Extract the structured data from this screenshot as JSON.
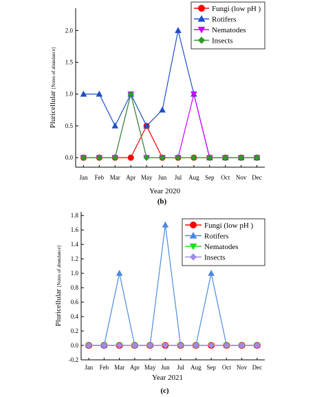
{
  "chart_data": [
    {
      "type": "line",
      "panel_label": "(b)",
      "xlabel": "Year 2020",
      "ylabel_main": "Pluricellular",
      "ylabel_sub": "[Notes of abundance]",
      "categories": [
        "Jan",
        "Feb",
        "Mar",
        "Apr",
        "May",
        "Jun",
        "Jul",
        "Aug",
        "Sep",
        "Oct",
        "Nov",
        "Dec"
      ],
      "ylim": [
        -0.15,
        2.35
      ],
      "yticks": [
        0.0,
        0.5,
        1.0,
        1.5,
        2.0
      ],
      "ytick_labels": [
        "0.0",
        "0.5",
        "1.0",
        "1.5",
        "2.0"
      ],
      "legend_placement": "top-right",
      "series": [
        {
          "name": "Fungi (low pH )",
          "color": "#ff0000",
          "marker": "circle",
          "values": [
            0,
            0,
            0,
            0,
            0.5,
            0,
            0,
            0,
            0,
            0,
            0,
            0
          ]
        },
        {
          "name": "Rotifers",
          "color": "#1e4fc8",
          "marker": "triangle-up",
          "values": [
            1.0,
            1.0,
            0.5,
            1.0,
            0.5,
            0.75,
            2.0,
            1.0,
            0,
            0,
            0,
            0
          ]
        },
        {
          "name": "Nematodes",
          "color": "#cc00ff",
          "marker": "triangle-down",
          "values": [
            0,
            0,
            0,
            1.0,
            0,
            0,
            0,
            1.0,
            0,
            0,
            0,
            0
          ]
        },
        {
          "name": "Insects",
          "color": "#2e9a2e",
          "marker": "diamond",
          "values": [
            0,
            0,
            0,
            1.0,
            0,
            0,
            0,
            0,
            0,
            0,
            0,
            0
          ]
        }
      ]
    },
    {
      "type": "line",
      "panel_label": "(c)",
      "xlabel": "Year 2021",
      "ylabel_main": "Pluricellular",
      "ylabel_sub": "[Notes of abundance]",
      "categories": [
        "Jan",
        "Feb",
        "Mar",
        "Apr",
        "May",
        "Jun",
        "Jul",
        "Aug",
        "Sep",
        "Oct",
        "Nov",
        "Dec"
      ],
      "ylim": [
        -0.2,
        1.85
      ],
      "yticks": [
        -0.2,
        0.0,
        0.2,
        0.4,
        0.6,
        0.8,
        1.0,
        1.2,
        1.4,
        1.6,
        1.8
      ],
      "ytick_labels": [
        "-0.2",
        "0.0",
        "0.2",
        "0.4",
        "0.6",
        "0.8",
        "1.0",
        "1.2",
        "1.4",
        "1.6",
        "1.8"
      ],
      "legend_placement": "top-right",
      "series": [
        {
          "name": "Fungi (low pH )",
          "color": "#ff0000",
          "marker": "circle",
          "values": [
            0,
            0,
            0,
            0,
            0,
            0,
            0,
            0,
            0,
            0,
            0,
            0
          ]
        },
        {
          "name": "Rotifers",
          "color": "#4a8ae0",
          "marker": "triangle-up",
          "values": [
            0,
            0,
            1.0,
            0,
            0,
            1.67,
            0,
            0,
            1.0,
            0,
            0,
            0
          ]
        },
        {
          "name": "Nematodes",
          "color": "#22dd22",
          "marker": "triangle-down",
          "values": [
            0,
            0,
            0,
            0,
            0,
            0,
            0,
            0,
            0,
            0,
            0,
            0
          ]
        },
        {
          "name": "Insects",
          "color": "#a08ce6",
          "marker": "diamond",
          "values": [
            0,
            0,
            0,
            0,
            0,
            0,
            0,
            0,
            0,
            0,
            0,
            0
          ]
        }
      ]
    }
  ]
}
